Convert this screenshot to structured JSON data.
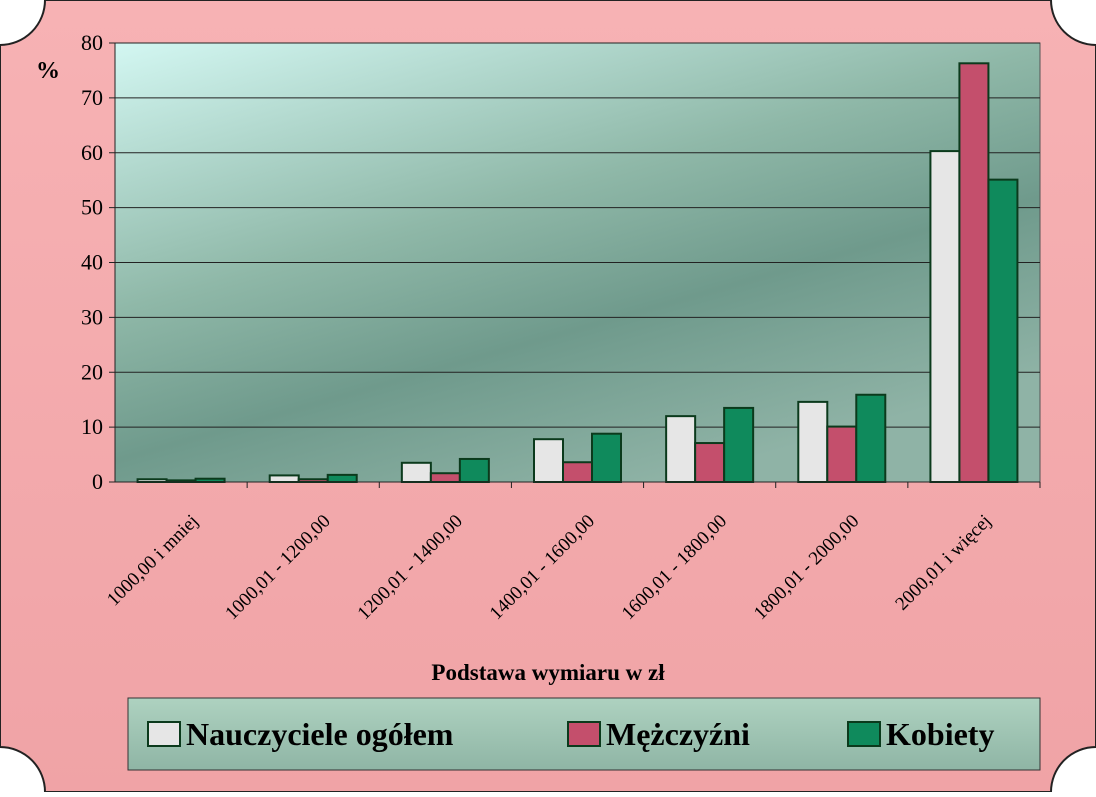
{
  "chart_data": {
    "type": "bar",
    "y_label": "%",
    "x_label": "Podstawa wymiaru w zł",
    "categories": [
      "1000,00 i mniej",
      "1000,01 - 1200,00",
      "1200,01 - 1400,00",
      "1400,01 - 1600,00",
      "1600,01 - 1800,00",
      "1800,01 - 2000,00",
      "2000,01 i więcej"
    ],
    "series": [
      {
        "name": "Nauczyciele ogółem",
        "color": "#e6e6e6",
        "values": [
          0.5,
          1.2,
          3.5,
          7.8,
          12,
          14.6,
          60.3
        ]
      },
      {
        "name": "Mężczyźni",
        "color": "#c44f6c",
        "values": [
          0.3,
          0.5,
          1.6,
          3.6,
          7.1,
          10.1,
          76.3
        ]
      },
      {
        "name": "Kobiety",
        "color": "#0f8a5c",
        "values": [
          0.6,
          1.3,
          4.2,
          8.8,
          13.5,
          15.9,
          55.1
        ]
      }
    ],
    "ylim": [
      0,
      80
    ],
    "yticks": [
      0,
      10,
      20,
      30,
      40,
      50,
      60,
      70,
      80
    ],
    "grid": true,
    "legend": "bottom"
  }
}
